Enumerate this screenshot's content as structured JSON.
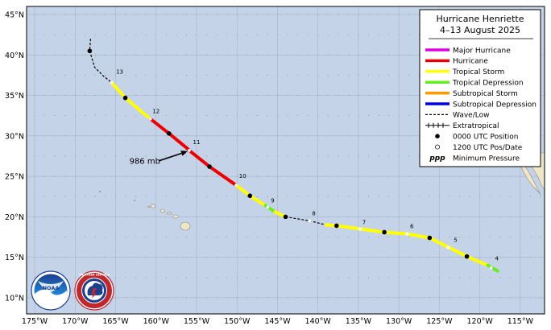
{
  "legend": {
    "title_line1": "Hurricane Henriette",
    "title_line2": "4–13 August 2025",
    "items": [
      {
        "label": "Major Hurricane",
        "symbol": "line",
        "color": "#e000e0"
      },
      {
        "label": "Hurricane",
        "symbol": "line",
        "color": "#ee0000"
      },
      {
        "label": "Tropical Storm",
        "symbol": "line",
        "color": "#ffff00"
      },
      {
        "label": "Tropical Depression",
        "symbol": "line",
        "color": "#66ee22"
      },
      {
        "label": "Subtropical Storm",
        "symbol": "line",
        "color": "#ff9900"
      },
      {
        "label": "Subtropical Depression",
        "symbol": "line",
        "color": "#0000ee"
      },
      {
        "label": "Wave/Low",
        "symbol": "dash",
        "color": "#000000"
      },
      {
        "label": "Extratropical",
        "symbol": "plus",
        "color": "#000000"
      },
      {
        "label": "0000 UTC Position",
        "symbol": "dot",
        "color": "#000000"
      },
      {
        "label": "1200 UTC Pos/Date",
        "symbol": "circle",
        "color": "#ffffff"
      },
      {
        "label": "Minimum Pressure",
        "symbol": "ppp",
        "color": "#000000",
        "sym_text": "ppp"
      }
    ]
  },
  "axes": {
    "lat_labels": [
      "45°N",
      "40°N",
      "35°N",
      "30°N",
      "25°N",
      "20°N",
      "15°N",
      "10°N"
    ],
    "lat_values": [
      45,
      40,
      35,
      30,
      25,
      20,
      15,
      10
    ],
    "lon_labels": [
      "175°W",
      "170°W",
      "165°W",
      "160°W",
      "155°W",
      "150°W",
      "145°W",
      "140°W",
      "135°W",
      "130°W",
      "125°W",
      "120°W",
      "115°W"
    ],
    "lon_values": [
      -175,
      -170,
      -165,
      -160,
      -155,
      -150,
      -145,
      -140,
      -135,
      -130,
      -125,
      -120,
      -115
    ],
    "lon_range": [
      -176,
      -112
    ],
    "lat_range": [
      8,
      46
    ]
  },
  "colors": {
    "ocean": "#c5d3e9",
    "land": "#efe6c8",
    "grid": "#8c8c8c"
  },
  "track": {
    "segments": [
      {
        "cat": "wave",
        "points": [
          [
            -168.1,
            42.0
          ],
          [
            -168.2,
            40.5
          ],
          [
            -167.6,
            38.5
          ],
          [
            -166.5,
            37.4
          ],
          [
            -165.5,
            36.6
          ]
        ]
      },
      {
        "cat": "ts",
        "points": [
          [
            -165.5,
            36.6
          ],
          [
            -163.8,
            34.7
          ],
          [
            -161.7,
            32.9
          ],
          [
            -160.7,
            32.1
          ]
        ]
      },
      {
        "cat": "hu",
        "points": [
          [
            -160.7,
            32.1
          ],
          [
            -158.4,
            30.3
          ],
          [
            -156.2,
            28.5
          ],
          [
            -155.9,
            28.2
          ],
          [
            -153.4,
            26.2
          ],
          [
            -150.1,
            23.9
          ]
        ]
      },
      {
        "cat": "ts",
        "points": [
          [
            -150.1,
            23.9
          ],
          [
            -148.4,
            22.6
          ],
          [
            -146.5,
            21.4
          ]
        ]
      },
      {
        "cat": "td",
        "points": [
          [
            -146.5,
            21.4
          ],
          [
            -145.3,
            20.6
          ]
        ]
      },
      {
        "cat": "ts",
        "points": [
          [
            -145.3,
            20.6
          ],
          [
            -144.0,
            20.0
          ]
        ]
      },
      {
        "cat": "wave",
        "points": [
          [
            -144.0,
            20.0
          ],
          [
            -141.0,
            19.5
          ],
          [
            -139.0,
            19.0
          ]
        ]
      },
      {
        "cat": "ts",
        "points": [
          [
            -139.0,
            19.0
          ],
          [
            -137.7,
            18.9
          ],
          [
            -134.8,
            18.5
          ],
          [
            -131.8,
            18.1
          ],
          [
            -129.0,
            17.9
          ],
          [
            -126.2,
            17.4
          ],
          [
            -121.6,
            15.1
          ],
          [
            -119.0,
            14.0
          ]
        ]
      },
      {
        "cat": "td",
        "points": [
          [
            -119.0,
            14.0
          ],
          [
            -117.8,
            13.3
          ]
        ]
      }
    ],
    "positions_0000": [
      [
        -168.2,
        40.5
      ],
      [
        -163.8,
        34.7
      ],
      [
        -158.4,
        30.3
      ],
      [
        -153.4,
        26.2
      ],
      [
        -148.4,
        22.6
      ],
      [
        -144.0,
        20.0
      ],
      [
        -137.7,
        18.9
      ],
      [
        -131.8,
        18.1
      ],
      [
        -126.2,
        17.4
      ],
      [
        -121.6,
        15.1
      ]
    ],
    "positions_1200": [
      [
        -118.6,
        13.7
      ],
      [
        -123.9,
        16.2
      ],
      [
        -129.0,
        17.9
      ],
      [
        -134.8,
        18.5
      ],
      [
        -141.0,
        19.5
      ],
      [
        -146.2,
        21.2
      ],
      [
        -150.1,
        23.9
      ],
      [
        -155.9,
        28.2
      ],
      [
        -160.7,
        32.1
      ],
      [
        -165.5,
        36.6
      ]
    ],
    "date_labels": [
      {
        "text": "4",
        "lon": -117.9,
        "lat": 14.6
      },
      {
        "text": "5",
        "lon": -123.0,
        "lat": 16.9
      },
      {
        "text": "6",
        "lon": -128.4,
        "lat": 18.6
      },
      {
        "text": "7",
        "lon": -134.3,
        "lat": 19.1
      },
      {
        "text": "8",
        "lon": -140.5,
        "lat": 20.2
      },
      {
        "text": "9",
        "lon": -145.6,
        "lat": 21.8
      },
      {
        "text": "10",
        "lon": -149.3,
        "lat": 24.8
      },
      {
        "text": "11",
        "lon": -155.0,
        "lat": 29.0
      },
      {
        "text": "12",
        "lon": -160.0,
        "lat": 32.8
      },
      {
        "text": "13",
        "lon": -164.5,
        "lat": 37.7
      }
    ]
  },
  "pressure": {
    "label": "986 mb",
    "lon": -155.9,
    "lat": 28.2
  }
}
